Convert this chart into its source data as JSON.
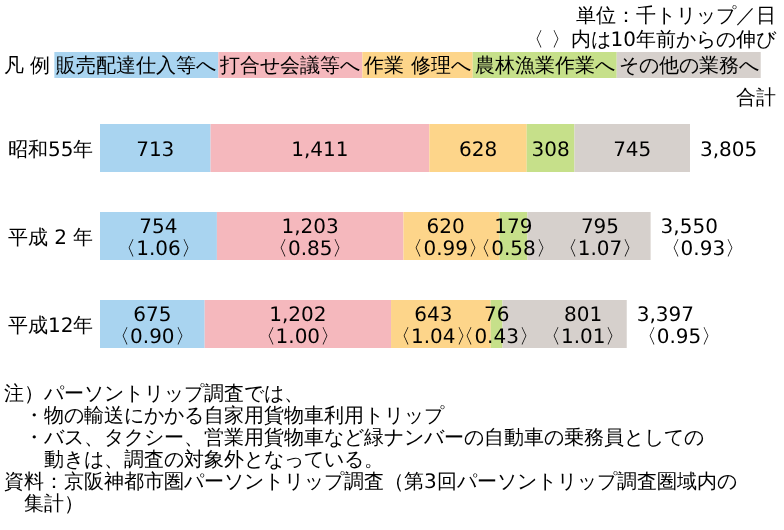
{
  "chart_data": {
    "type": "bar",
    "orientation": "horizontal",
    "stacked": true,
    "title": "単位：千トリップ／日",
    "subtitle": "〈 〉内は10年前からの伸び",
    "legend_title": "凡 例",
    "legend": "top",
    "categories": [
      "昭和55年",
      "平成 2 年",
      "平成12年"
    ],
    "series": [
      {
        "name": "販売配達仕入等へ",
        "color": "#a9d4f0",
        "values": [
          713,
          754,
          675
        ],
        "value_labels": [
          "713",
          "754\n〈1.06〉",
          "675\n〈0.90〉"
        ]
      },
      {
        "name": "打合せ会議等へ",
        "color": "#f5b8bd",
        "values": [
          1411,
          1203,
          1202
        ],
        "value_labels": [
          "1,411",
          "1,203\n〈0.85〉",
          "1,202\n〈1.00〉"
        ]
      },
      {
        "name": "作業 修理へ",
        "color": "#fdd58a",
        "values": [
          628,
          620,
          643
        ],
        "value_labels": [
          "628",
          "620\n〈0.99〉",
          "643\n〈1.04〉"
        ]
      },
      {
        "name": "農林漁業作業へ",
        "color": "#c6e08a",
        "values": [
          308,
          179,
          76
        ],
        "value_labels": [
          "308",
          "179\n〈0.58〉",
          "76\n〈0.43〉"
        ]
      },
      {
        "name": "その他の業務へ",
        "color": "#d6d0cc",
        "values": [
          745,
          795,
          801
        ],
        "value_labels": [
          "745",
          "795\n〈1.07〉",
          "801\n〈1.01〉"
        ]
      }
    ],
    "totals": [
      "3,805",
      "3,550\n〈0.93〉",
      "3,397\n〈0.95〉"
    ],
    "annotations": [
      "合計",
      "注）パーソントリップ調査では、",
      "・物の輸送にかかる自家用貨物車利用トリップ",
      "・バス、タクシー、営業用貨物車など緑ナンバーの自動車の乗務員としての動きは、調査の対象外となっている。",
      "資料：京阪神都市圏パーソントリップ調査（第3回パーソントリップ調査圏域内の集計）"
    ]
  }
}
